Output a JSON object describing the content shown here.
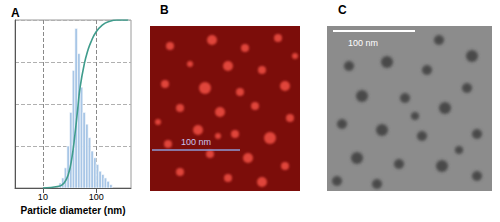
{
  "chart_data": {
    "type": "histogram",
    "title": "A",
    "x_label": "Particle diameter (nm)",
    "log": "x",
    "grid": true,
    "tick_labels": "x",
    "xlim": [
      3,
      450
    ],
    "xticks": [
      10,
      100
    ],
    "ylim": [
      0,
      100
    ],
    "yticks": [
      0,
      25,
      50,
      75,
      100
    ],
    "bins": [
      20,
      22.4,
      25.1,
      28.2,
      31.6,
      35.5,
      39.8,
      44.7,
      50.1,
      56.2,
      63.1,
      70.8,
      79.4,
      89.1,
      100,
      112,
      126,
      141,
      158,
      178,
      200
    ],
    "counts": [
      3,
      6,
      12,
      25,
      45,
      70,
      95,
      80,
      60,
      45,
      38,
      30,
      22,
      18,
      14,
      10,
      8,
      6,
      4,
      2
    ],
    "color": "#a8c6e6",
    "cumulative": {
      "type": "line",
      "x": [
        10,
        20,
        25,
        30,
        35,
        40,
        45,
        50,
        60,
        70,
        80,
        100,
        130,
        170,
        250,
        400
      ],
      "values": [
        0,
        1,
        3,
        8,
        18,
        32,
        47,
        60,
        74,
        82,
        87,
        93,
        97,
        99,
        100,
        100
      ],
      "color": "#3f9c8c"
    }
  },
  "images": [
    {
      "title": "B",
      "scale_bar": "100 nm"
    },
    {
      "title": "C",
      "scale_bar": "100 nm"
    }
  ]
}
